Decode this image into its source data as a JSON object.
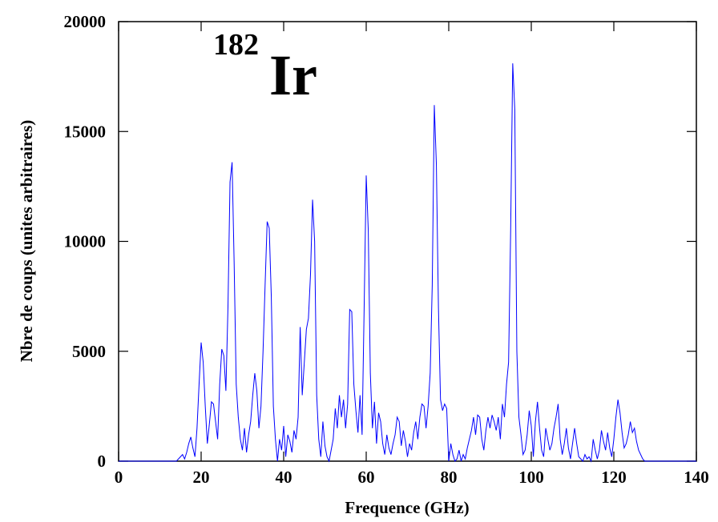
{
  "chart_data": {
    "type": "line",
    "annotation": {
      "mass": "182",
      "symbol": "Ir"
    },
    "x_label": "Frequence (GHz)",
    "y_label": "Nbre de coups (unites arbitraires)",
    "xlim": [
      0,
      140
    ],
    "xticks": [
      0,
      20,
      40,
      60,
      80,
      100,
      120,
      140
    ],
    "ylim": [
      0,
      20000
    ],
    "yticks": [
      0,
      5000,
      10000,
      15000,
      20000
    ],
    "color": "#0000ff",
    "x": [
      0,
      14,
      14.5,
      15,
      15.5,
      16,
      16.5,
      17,
      17.5,
      18,
      18.5,
      19,
      19.5,
      20,
      20.5,
      21,
      21.5,
      22,
      22.5,
      23,
      23.5,
      24,
      24.5,
      25,
      25.5,
      26,
      26.5,
      27,
      27.5,
      28,
      28.5,
      29,
      29.5,
      30,
      30.5,
      31,
      31.5,
      32,
      32.5,
      33,
      33.5,
      34,
      34.5,
      35,
      35.5,
      36,
      36.5,
      37,
      37.5,
      38,
      38.5,
      39,
      39.5,
      40,
      40.5,
      41,
      41.5,
      42,
      42.5,
      43,
      43.5,
      44,
      44.5,
      45,
      45.5,
      46,
      46.5,
      47,
      47.5,
      48,
      48.5,
      49,
      49.5,
      50,
      50.5,
      51,
      51.5,
      52,
      52.5,
      53,
      53.5,
      54,
      54.5,
      55,
      55.5,
      56,
      56.5,
      57,
      57.5,
      58,
      58.5,
      59,
      59.5,
      60,
      60.5,
      61,
      61.5,
      62,
      62.5,
      63,
      63.5,
      64,
      64.5,
      65,
      65.5,
      66,
      66.5,
      67,
      67.5,
      68,
      68.5,
      69,
      69.5,
      70,
      70.5,
      71,
      71.5,
      72,
      72.5,
      73,
      73.5,
      74,
      74.5,
      75,
      75.5,
      76,
      76.5,
      77,
      77.5,
      78,
      78.5,
      79,
      79.5,
      80,
      80.5,
      81,
      81.5,
      82,
      82.5,
      83,
      83.5,
      84,
      84.5,
      85,
      85.5,
      86,
      86.5,
      87,
      87.5,
      88,
      88.5,
      89,
      89.5,
      90,
      90.5,
      91,
      91.5,
      92,
      92.5,
      93,
      93.5,
      94,
      94.5,
      95,
      95.5,
      96,
      96.5,
      97,
      97.5,
      98,
      98.5,
      99,
      99.5,
      100,
      100.5,
      101,
      101.5,
      102,
      102.5,
      103,
      103.5,
      104,
      104.5,
      105,
      105.5,
      106,
      106.5,
      107,
      107.5,
      108,
      108.5,
      109,
      109.5,
      110,
      110.5,
      111,
      111.5,
      112,
      112.5,
      113,
      113.5,
      114,
      114.5,
      115,
      115.5,
      116,
      116.5,
      117,
      117.5,
      118,
      118.5,
      119,
      119.5,
      120,
      120.5,
      121,
      121.5,
      122,
      122.5,
      123,
      123.5,
      124,
      124.5,
      125,
      125.5,
      126,
      126.5,
      127,
      127.5,
      128,
      140
    ],
    "values": [
      0,
      0,
      100,
      200,
      300,
      100,
      400,
      800,
      1100,
      600,
      200,
      1500,
      3500,
      5400,
      4500,
      2500,
      800,
      1700,
      2700,
      2600,
      1800,
      1000,
      3500,
      5100,
      4800,
      3200,
      7000,
      12700,
      13600,
      9000,
      3500,
      2000,
      1000,
      500,
      1500,
      400,
      1200,
      1800,
      3000,
      4000,
      3200,
      1500,
      2500,
      5000,
      8000,
      10900,
      10600,
      7500,
      2500,
      1000,
      0,
      1000,
      500,
      1600,
      200,
      1200,
      900,
      400,
      1400,
      1000,
      2000,
      6100,
      3000,
      4500,
      6000,
      6500,
      8500,
      11900,
      10000,
      3000,
      1000,
      200,
      1800,
      700,
      200,
      0,
      500,
      1000,
      2400,
      1500,
      3000,
      2000,
      2800,
      1500,
      2600,
      6900,
      6800,
      3500,
      2300,
      1300,
      3000,
      1200,
      7000,
      13000,
      10500,
      4000,
      1500,
      2700,
      800,
      2200,
      1800,
      800,
      300,
      1200,
      600,
      300,
      800,
      1200,
      2000,
      1800,
      700,
      1400,
      900,
      200,
      800,
      500,
      1300,
      1800,
      1000,
      2000,
      2600,
      2500,
      1500,
      2500,
      4000,
      8000,
      16200,
      13500,
      7000,
      2800,
      2300,
      2600,
      2400,
      0,
      800,
      300,
      0,
      100,
      500,
      0,
      300,
      100,
      600,
      1000,
      1400,
      2000,
      1200,
      2100,
      2000,
      1000,
      500,
      1400,
      2000,
      1500,
      2100,
      1800,
      1400,
      2000,
      1000,
      2600,
      2000,
      3500,
      4500,
      10500,
      18100,
      16000,
      5000,
      2000,
      1200,
      300,
      500,
      1200,
      2300,
      1600,
      200,
      1800,
      2700,
      1500,
      500,
      200,
      1500,
      1000,
      500,
      800,
      1500,
      2000,
      2600,
      1000,
      300,
      800,
      1500,
      600,
      100,
      800,
      1500,
      800,
      200,
      100,
      0,
      300,
      100,
      200,
      0,
      1000,
      500,
      100,
      500,
      1400,
      900,
      500,
      1300,
      600,
      200,
      1000,
      2000,
      2800,
      2200,
      1300,
      600,
      800,
      1200,
      1800,
      1300,
      1500,
      900,
      500,
      300,
      100,
      0,
      0,
      0
    ]
  }
}
